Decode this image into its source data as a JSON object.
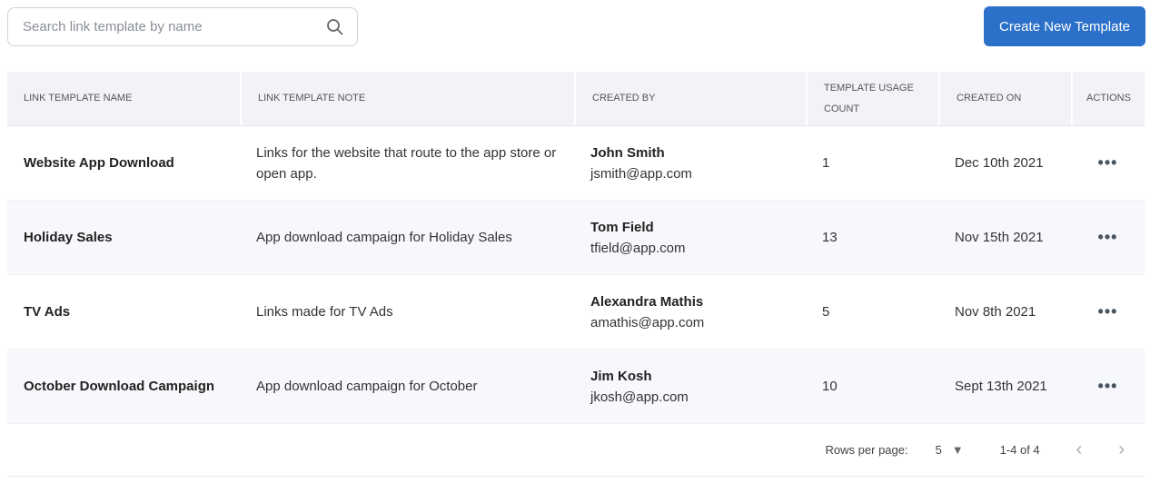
{
  "search": {
    "placeholder": "Search link template by name",
    "icon": "search-icon"
  },
  "create_button": "Create New Template",
  "colors": {
    "accent": "#2b70c9",
    "header_bg": "#f1f3f6",
    "stripe": "#f6f8fb"
  },
  "columns": [
    "Link Template Name",
    "Link Template Note",
    "Created By",
    "Template Usage Count",
    "Created On",
    "Actions"
  ],
  "rows": [
    {
      "name": "Website App Download",
      "note": "Links for the website that route to the app store or open app.",
      "creator": "John Smith",
      "email": "jsmith@app.com",
      "count": "1",
      "date": "Dec 10th 2021"
    },
    {
      "name": "Holiday Sales",
      "note": "App download campaign for Holiday Sales",
      "creator": "Tom Field",
      "email": "tfield@app.com",
      "count": "13",
      "date": "Nov 15th 2021"
    },
    {
      "name": "TV Ads",
      "note": "Links made for TV Ads",
      "creator": "Alexandra Mathis",
      "email": "amathis@app.com",
      "count": "5",
      "date": "Nov 8th 2021"
    },
    {
      "name": "October Download Campaign",
      "note": "App download campaign for October",
      "creator": "Jim Kosh",
      "email": "jkosh@app.com",
      "count": "10",
      "date": "Sept 13th 2021"
    }
  ],
  "pagination": {
    "rows_per_page_label": "Rows per page:",
    "rows_per_page": "5",
    "range": "1-4 of 4"
  }
}
